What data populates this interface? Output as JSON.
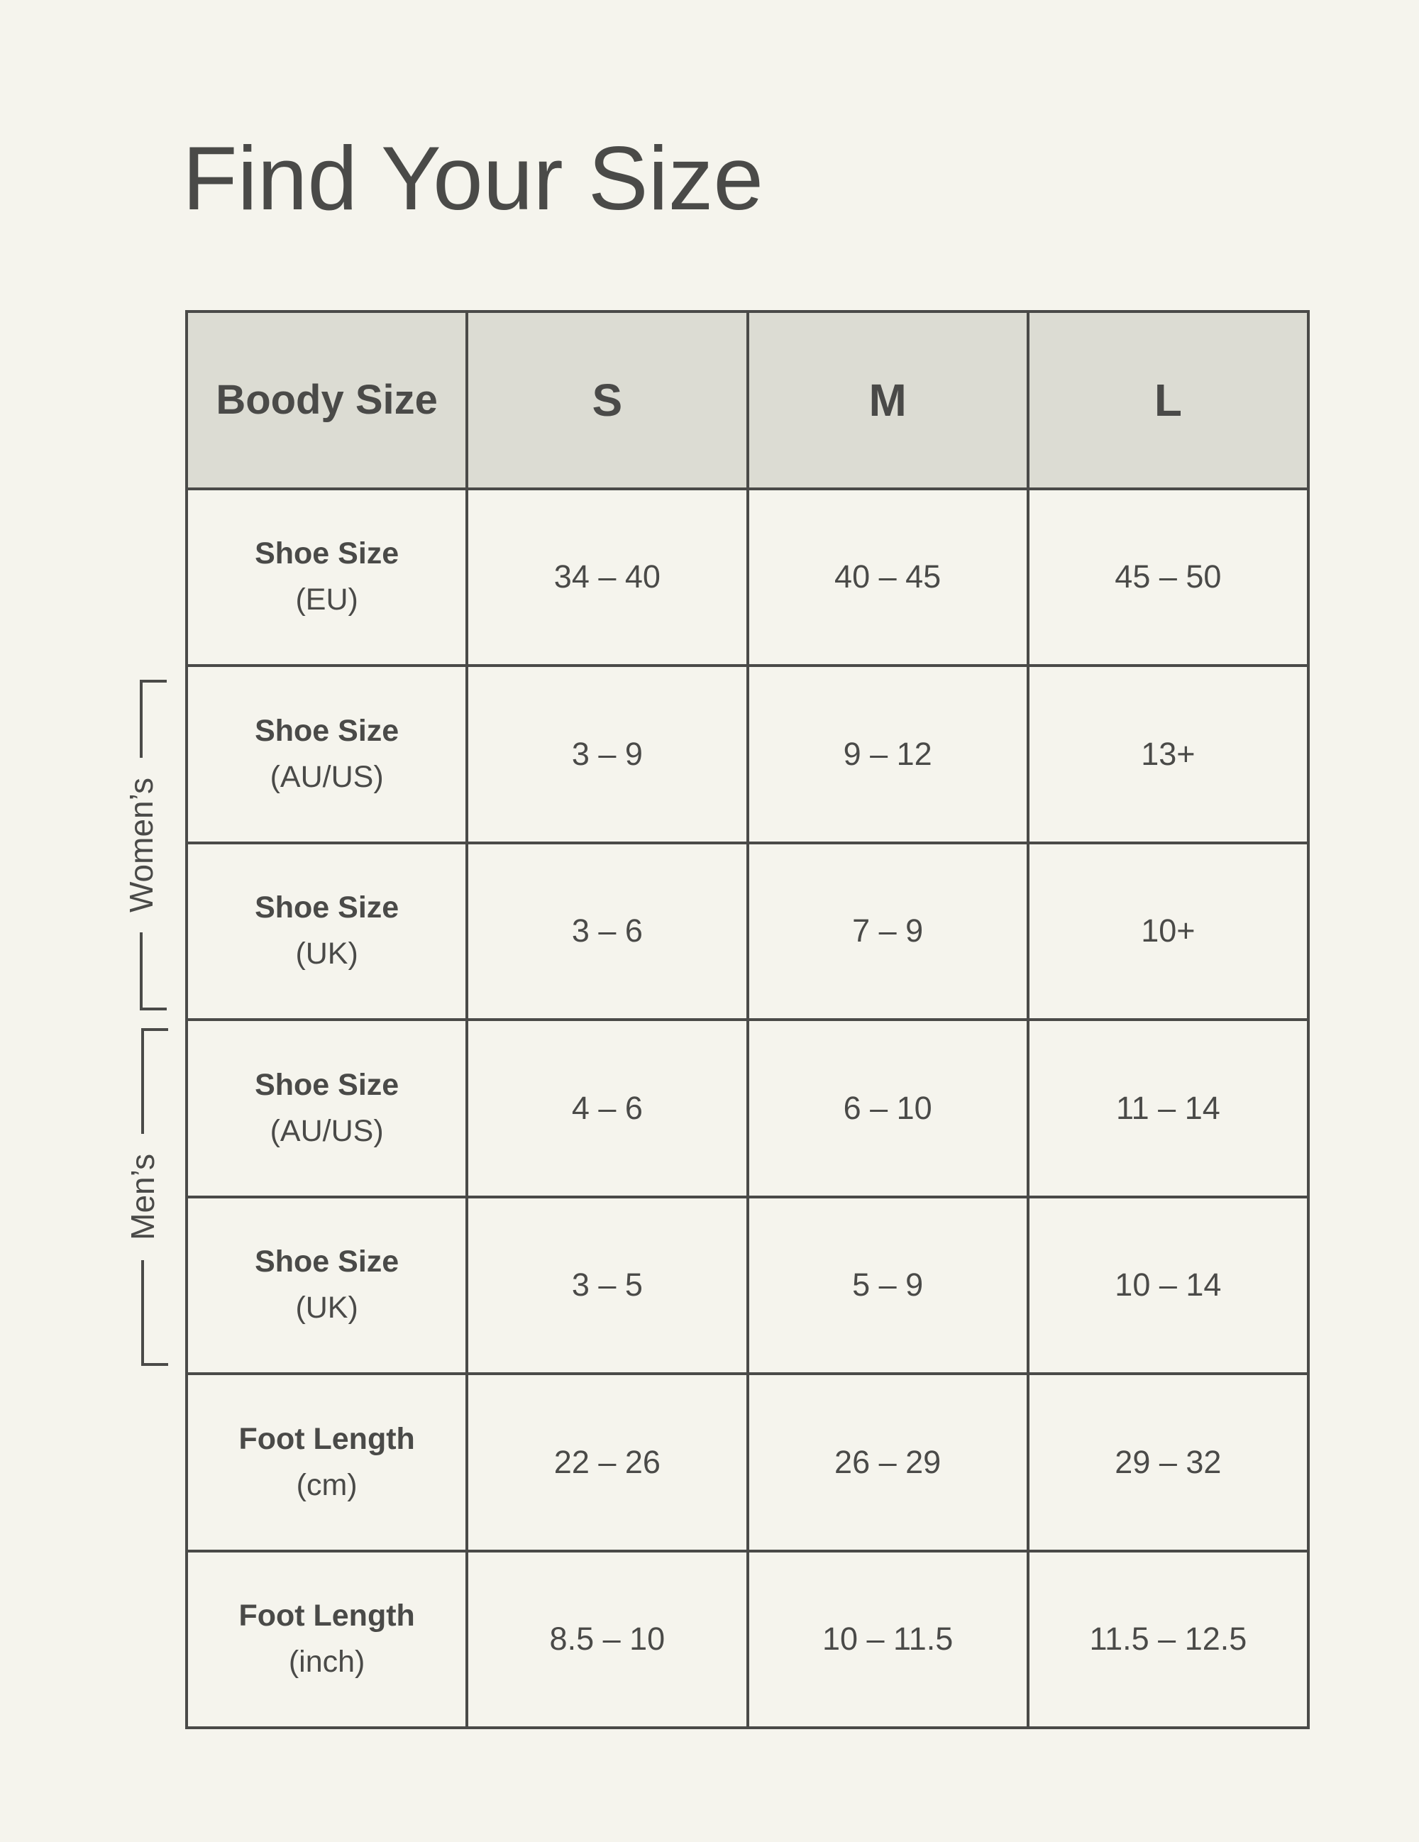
{
  "page": {
    "title": "Find Your Size"
  },
  "colors": {
    "ink": "#4A4A48",
    "header_bg": "#DCDCD3",
    "background": "#F5F4ED"
  },
  "table": {
    "corner_label": "Boody Size",
    "size_columns": [
      "S",
      "M",
      "L"
    ],
    "rows": [
      {
        "label": "Shoe Size",
        "unit": "(EU)",
        "values": [
          "34 – 40",
          "40 – 45",
          "45 – 50"
        ]
      },
      {
        "label": "Shoe Size",
        "unit": "(AU/US)",
        "values": [
          "3 – 9",
          "9 – 12",
          "13+"
        ]
      },
      {
        "label": "Shoe Size",
        "unit": "(UK)",
        "values": [
          "3 – 6",
          "7 – 9",
          "10+"
        ]
      },
      {
        "label": "Shoe Size",
        "unit": "(AU/US)",
        "values": [
          "4 – 6",
          "6 – 10",
          "11 – 14"
        ]
      },
      {
        "label": "Shoe Size",
        "unit": "(UK)",
        "values": [
          "3 – 5",
          "5 – 9",
          "10 – 14"
        ]
      },
      {
        "label": "Foot Length",
        "unit": "(cm)",
        "values": [
          "22 – 26",
          "26 – 29",
          "29 – 32"
        ]
      },
      {
        "label": "Foot Length",
        "unit": "(inch)",
        "values": [
          "8.5 – 10",
          "10 – 11.5",
          "11.5 – 12.5"
        ]
      }
    ]
  },
  "groups": {
    "womens": "Women’s",
    "mens": "Men’s"
  },
  "chart_data": {
    "type": "table",
    "title": "Find Your Size",
    "columns": [
      "Boody Size",
      "S",
      "M",
      "L"
    ],
    "rows": [
      [
        "Shoe Size (EU)",
        "34 – 40",
        "40 – 45",
        "45 – 50"
      ],
      [
        "Shoe Size (AU/US)",
        "3 – 9",
        "9 – 12",
        "13+"
      ],
      [
        "Shoe Size (UK)",
        "3 – 6",
        "7 – 9",
        "10+"
      ],
      [
        "Shoe Size (AU/US)",
        "4 – 6",
        "6 – 10",
        "11 – 14"
      ],
      [
        "Shoe Size (UK)",
        "3 – 5",
        "5 – 9",
        "10 – 14"
      ],
      [
        "Foot Length (cm)",
        "22 – 26",
        "26 – 29",
        "29 – 32"
      ],
      [
        "Foot Length (inch)",
        "8.5 – 10",
        "10 – 11.5",
        "11.5 – 12.5"
      ]
    ],
    "row_groups": [
      {
        "label": "Women’s",
        "applies_to_rows": [
          1,
          2
        ]
      },
      {
        "label": "Men’s",
        "applies_to_rows": [
          3,
          4
        ]
      }
    ]
  }
}
